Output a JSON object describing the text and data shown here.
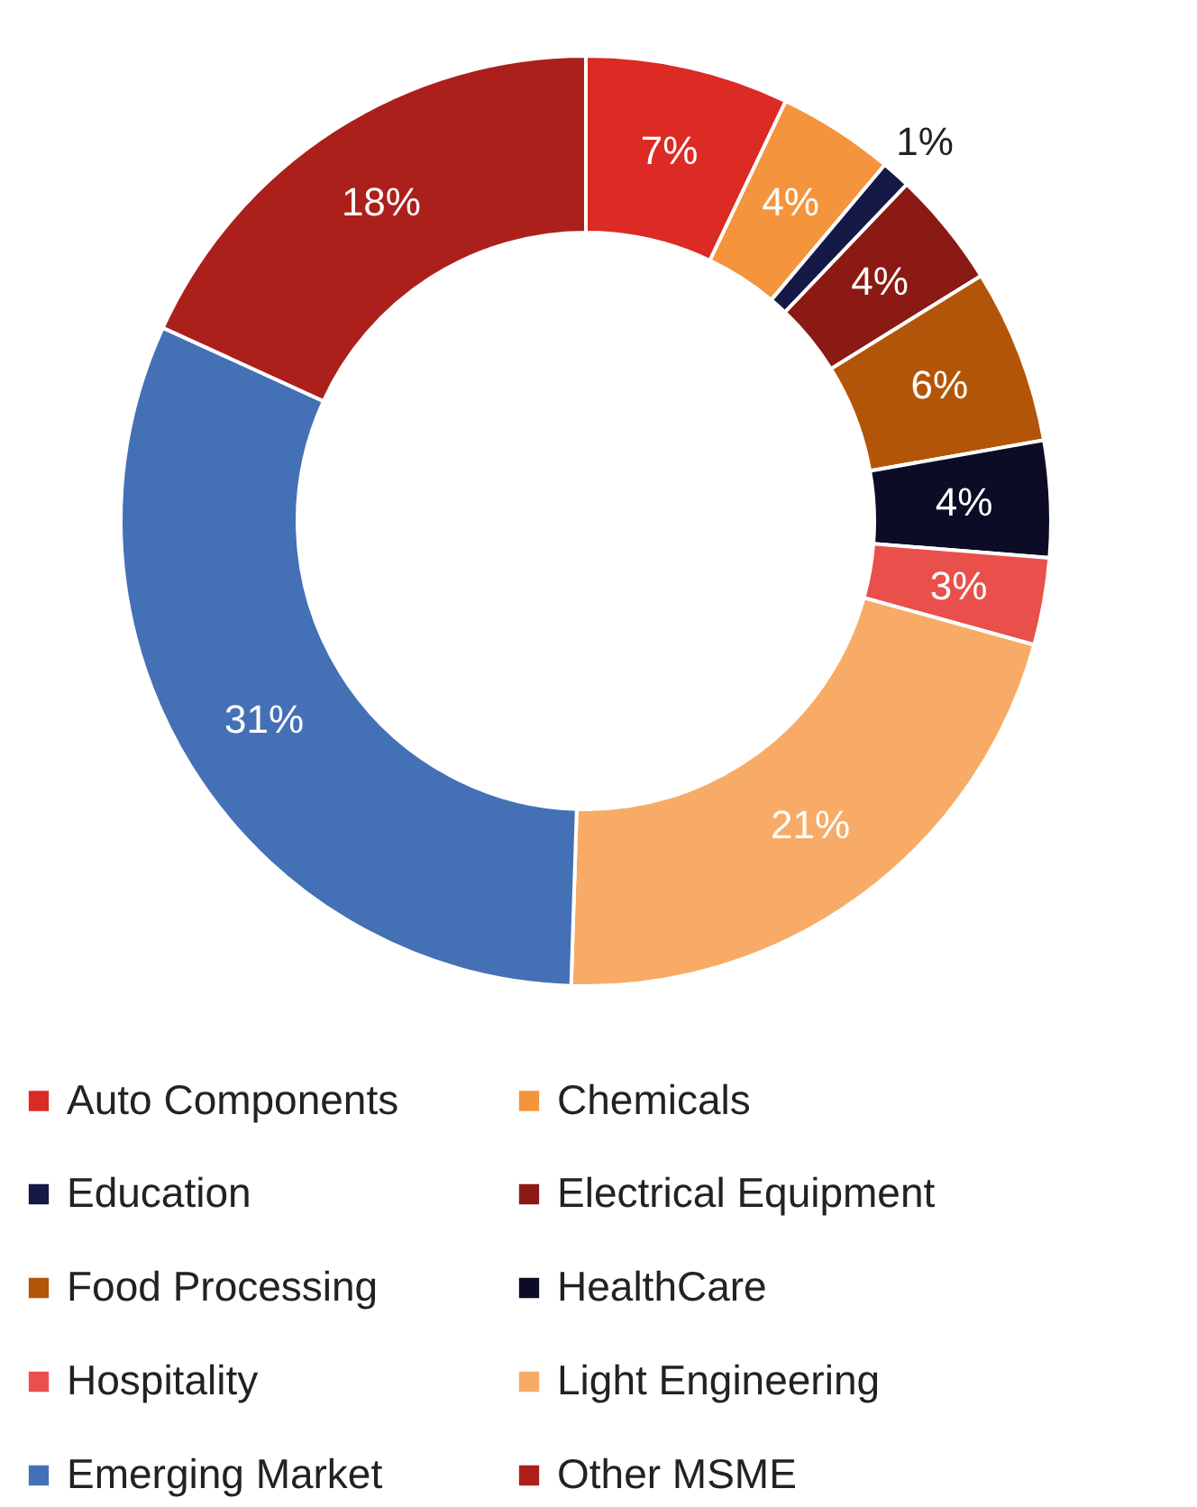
{
  "chart_data": {
    "type": "donut",
    "categories": [
      "Auto Components",
      "Chemicals",
      "Education",
      "Electrical Equipment",
      "Food Processing",
      "HealthCare",
      "Hospitality",
      "Light Engineering",
      "Emerging Market",
      "Other MSME"
    ],
    "values": [
      7,
      4,
      1,
      4,
      6,
      4,
      3,
      21,
      31,
      18
    ],
    "value_labels": [
      "7%",
      "4%",
      "1%",
      "4%",
      "6%",
      "4%",
      "3%",
      "21%",
      "31%",
      "18%"
    ],
    "colors": [
      "#dc2a24",
      "#f4943c",
      "#141a45",
      "#8b1a14",
      "#b35508",
      "#0c0c26",
      "#e9504c",
      "#f7ab66",
      "#4470b6",
      "#ac201c"
    ],
    "legend": "bottom"
  }
}
